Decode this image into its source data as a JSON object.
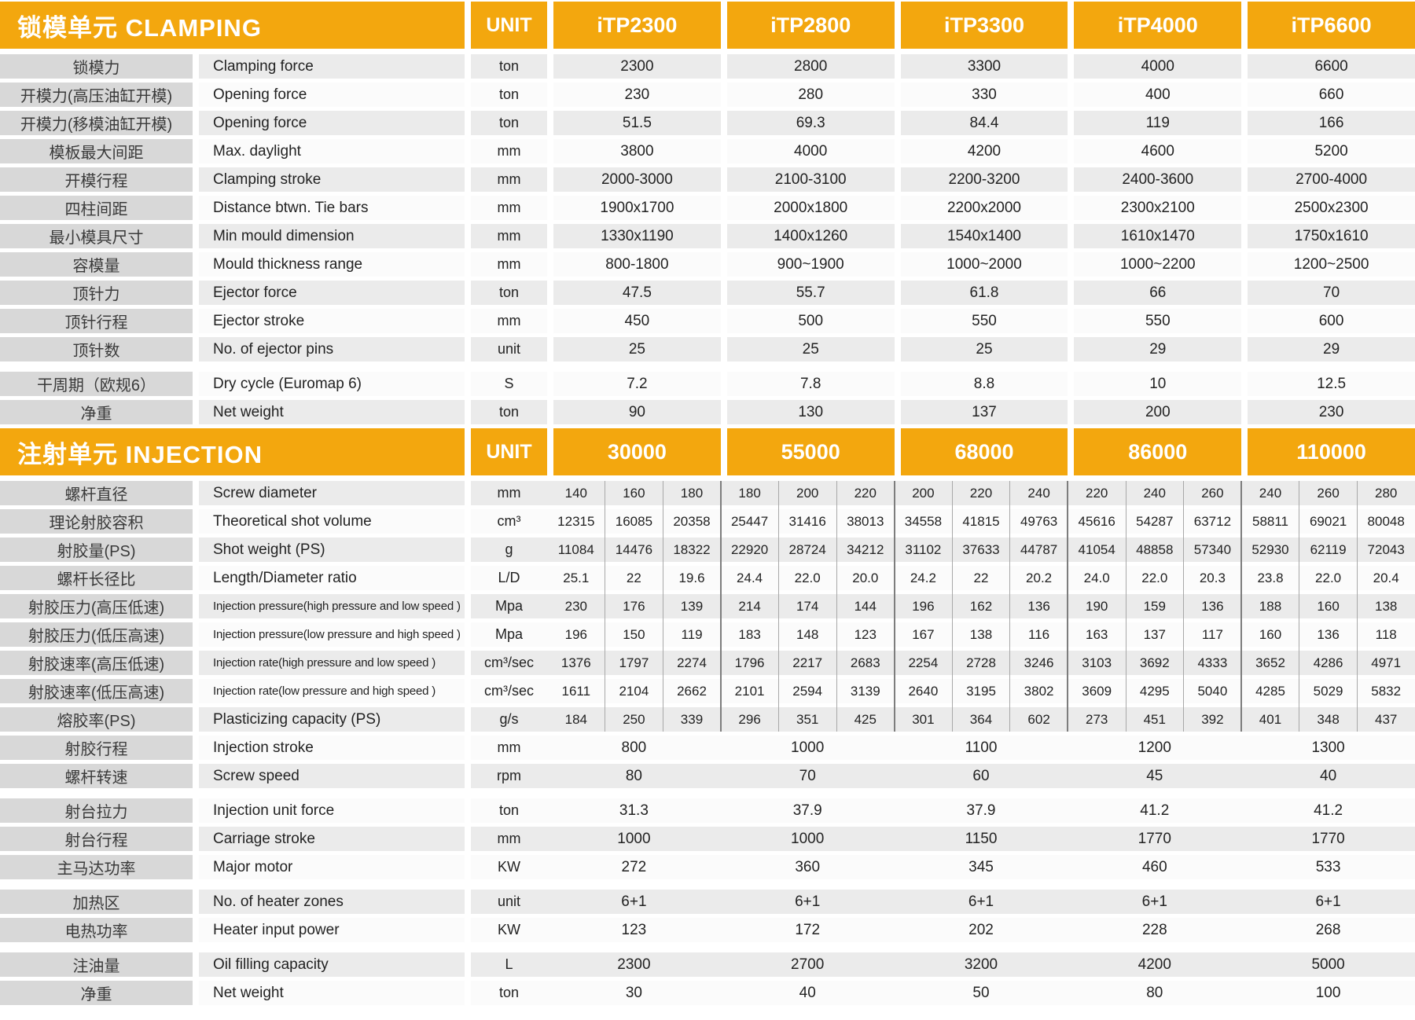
{
  "colors": {
    "header_orange": "#F3A70E",
    "label_cell_gray": "#D8D8D8",
    "row_gray": "#EBEBEB",
    "row_white": "#FBFBFB",
    "grid_line": "#A8A8A8",
    "grid_line_strong": "#7D7D7D",
    "header_text": "#FFFFFF",
    "body_text": "#222222"
  },
  "sections": [
    {
      "kind": "clamping",
      "title": "锁模单元 CLAMPING",
      "unit_label": "UNIT",
      "columns": [
        "iTP2300",
        "iTP2800",
        "iTP3300",
        "iTP4000",
        "iTP6600"
      ],
      "rows": [
        {
          "cn": "锁模力",
          "en": "Clamping force",
          "unit": "ton",
          "values": [
            "2300",
            "2800",
            "3300",
            "4000",
            "6600"
          ]
        },
        {
          "cn": "开模力(高压油缸开模)",
          "en": "Opening force",
          "unit": "ton",
          "values": [
            "230",
            "280",
            "330",
            "400",
            "660"
          ]
        },
        {
          "cn": "开模力(移模油缸开模)",
          "en": "Opening force",
          "unit": "ton",
          "values": [
            "51.5",
            "69.3",
            "84.4",
            "119",
            "166"
          ]
        },
        {
          "cn": "模板最大间距",
          "en": "Max. daylight",
          "unit": "mm",
          "values": [
            "3800",
            "4000",
            "4200",
            "4600",
            "5200"
          ]
        },
        {
          "cn": "开模行程",
          "en": "Clamping stroke",
          "unit": "mm",
          "values": [
            "2000-3000",
            "2100-3100",
            "2200-3200",
            "2400-3600",
            "2700-4000"
          ]
        },
        {
          "cn": "四柱间距",
          "en": "Distance btwn. Tie bars",
          "unit": "mm",
          "values": [
            "1900x1700",
            "2000x1800",
            "2200x2000",
            "2300x2100",
            "2500x2300"
          ]
        },
        {
          "cn": "最小模具尺寸",
          "en": "Min mould dimension",
          "unit": "mm",
          "values": [
            "1330x1190",
            "1400x1260",
            "1540x1400",
            "1610x1470",
            "1750x1610"
          ]
        },
        {
          "cn": "容模量",
          "en": "Mould thickness range",
          "unit": "mm",
          "values": [
            "800-1800",
            "900~1900",
            "1000~2000",
            "1000~2200",
            "1200~2500"
          ]
        },
        {
          "cn": "顶针力",
          "en": "Ejector force",
          "unit": "ton",
          "values": [
            "47.5",
            "55.7",
            "61.8",
            "66",
            "70"
          ]
        },
        {
          "cn": "顶针行程",
          "en": "Ejector stroke",
          "unit": "mm",
          "values": [
            "450",
            "500",
            "550",
            "550",
            "600"
          ]
        },
        {
          "cn": "顶针数",
          "en": "No. of ejector pins",
          "unit": "unit",
          "values": [
            "25",
            "25",
            "25",
            "29",
            "29"
          ]
        },
        {
          "cn": "干周期（欧规6）",
          "en": "Dry cycle (Euromap 6)",
          "unit": "S",
          "gap": true,
          "values": [
            "7.2",
            "7.8",
            "8.8",
            "10",
            "12.5"
          ]
        },
        {
          "cn": "净重",
          "en": "Net weight",
          "unit": "ton",
          "values": [
            "90",
            "130",
            "137",
            "200",
            "230"
          ]
        }
      ]
    },
    {
      "kind": "injection",
      "title": "注射单元 INJECTION",
      "unit_label": "UNIT",
      "columns": [
        "30000",
        "55000",
        "68000",
        "86000",
        "110000"
      ],
      "rows": [
        {
          "cn": "螺杆直径",
          "en": "Screw diameter",
          "unit": "mm",
          "type": "multi",
          "values": [
            [
              "140",
              "160",
              "180"
            ],
            [
              "180",
              "200",
              "220"
            ],
            [
              "200",
              "220",
              "240"
            ],
            [
              "220",
              "240",
              "260"
            ],
            [
              "240",
              "260",
              "280"
            ]
          ]
        },
        {
          "cn": "理论射胶容积",
          "en": "Theoretical shot volume",
          "unit": "cm³",
          "type": "multi",
          "values": [
            [
              "12315",
              "16085",
              "20358"
            ],
            [
              "25447",
              "31416",
              "38013"
            ],
            [
              "34558",
              "41815",
              "49763"
            ],
            [
              "45616",
              "54287",
              "63712"
            ],
            [
              "58811",
              "69021",
              "80048"
            ]
          ]
        },
        {
          "cn": "射胶量(PS)",
          "en": "Shot weight (PS)",
          "unit": "g",
          "type": "multi",
          "values": [
            [
              "11084",
              "14476",
              "18322"
            ],
            [
              "22920",
              "28724",
              "34212"
            ],
            [
              "31102",
              "37633",
              "44787"
            ],
            [
              "41054",
              "48858",
              "57340"
            ],
            [
              "52930",
              "62119",
              "72043"
            ]
          ]
        },
        {
          "cn": "螺杆长径比",
          "en": "Length/Diameter ratio",
          "unit": "L/D",
          "type": "multi",
          "values": [
            [
              "25.1",
              "22",
              "19.6"
            ],
            [
              "24.4",
              "22.0",
              "20.0"
            ],
            [
              "24.2",
              "22",
              "20.2"
            ],
            [
              "24.0",
              "22.0",
              "20.3"
            ],
            [
              "23.8",
              "22.0",
              "20.4"
            ]
          ]
        },
        {
          "cn": "射胶压力(高压低速)",
          "en": "Injection pressure(high pressure and low speed )",
          "small": true,
          "unit": "Mpa",
          "type": "multi",
          "values": [
            [
              "230",
              "176",
              "139"
            ],
            [
              "214",
              "174",
              "144"
            ],
            [
              "196",
              "162",
              "136"
            ],
            [
              "190",
              "159",
              "136"
            ],
            [
              "188",
              "160",
              "138"
            ]
          ]
        },
        {
          "cn": "射胶压力(低压高速)",
          "en": "Injection pressure(low pressure and high speed )",
          "small": true,
          "unit": "Mpa",
          "type": "multi",
          "values": [
            [
              "196",
              "150",
              "119"
            ],
            [
              "183",
              "148",
              "123"
            ],
            [
              "167",
              "138",
              "116"
            ],
            [
              "163",
              "137",
              "117"
            ],
            [
              "160",
              "136",
              "118"
            ]
          ]
        },
        {
          "cn": "射胶速率(高压低速)",
          "en": "Injection rate(high pressure and low speed )",
          "small": true,
          "unit": "cm³/sec",
          "type": "multi",
          "values": [
            [
              "1376",
              "1797",
              "2274"
            ],
            [
              "1796",
              "2217",
              "2683"
            ],
            [
              "2254",
              "2728",
              "3246"
            ],
            [
              "3103",
              "3692",
              "4333"
            ],
            [
              "3652",
              "4286",
              "4971"
            ]
          ]
        },
        {
          "cn": "射胶速率(低压高速)",
          "en": "Injection rate(low pressure and high speed )",
          "small": true,
          "unit": "cm³/sec",
          "type": "multi",
          "values": [
            [
              "1611",
              "2104",
              "2662"
            ],
            [
              "2101",
              "2594",
              "3139"
            ],
            [
              "2640",
              "3195",
              "3802"
            ],
            [
              "3609",
              "4295",
              "5040"
            ],
            [
              "4285",
              "5029",
              "5832"
            ]
          ]
        },
        {
          "cn": "熔胶率(PS)",
          "en": "Plasticizing capacity (PS)",
          "unit": "g/s",
          "type": "multi",
          "values": [
            [
              "184",
              "250",
              "339"
            ],
            [
              "296",
              "351",
              "425"
            ],
            [
              "301",
              "364",
              "602"
            ],
            [
              "273",
              "451",
              "392"
            ],
            [
              "401",
              "348",
              "437"
            ]
          ]
        },
        {
          "cn": "射胶行程",
          "en": "Injection stroke",
          "unit": "mm",
          "values": [
            "800",
            "1000",
            "1100",
            "1200",
            "1300"
          ]
        },
        {
          "cn": "螺杆转速",
          "en": "Screw speed",
          "unit": "rpm",
          "values": [
            "80",
            "70",
            "60",
            "45",
            "40"
          ]
        },
        {
          "cn": "射台拉力",
          "en": "Injection unit force",
          "unit": "ton",
          "gap": true,
          "values": [
            "31.3",
            "37.9",
            "37.9",
            "41.2",
            "41.2"
          ]
        },
        {
          "cn": "射台行程",
          "en": "Carriage stroke",
          "unit": "mm",
          "values": [
            "1000",
            "1000",
            "1150",
            "1770",
            "1770"
          ]
        },
        {
          "cn": "主马达功率",
          "en": "Major motor",
          "unit": "KW",
          "values": [
            "272",
            "360",
            "345",
            "460",
            "533"
          ]
        },
        {
          "cn": "加热区",
          "en": "No. of heater zones",
          "unit": "unit",
          "gap": true,
          "values": [
            "6+1",
            "6+1",
            "6+1",
            "6+1",
            "6+1"
          ]
        },
        {
          "cn": "电热功率",
          "en": "Heater input power",
          "unit": "KW",
          "values": [
            "123",
            "172",
            "202",
            "228",
            "268"
          ]
        },
        {
          "cn": "注油量",
          "en": "Oil filling capacity",
          "unit": "L",
          "gap": true,
          "values": [
            "2300",
            "2700",
            "3200",
            "4200",
            "5000"
          ]
        },
        {
          "cn": "净重",
          "en": "Net weight",
          "unit": "ton",
          "values": [
            "30",
            "40",
            "50",
            "80",
            "100"
          ]
        }
      ]
    }
  ]
}
